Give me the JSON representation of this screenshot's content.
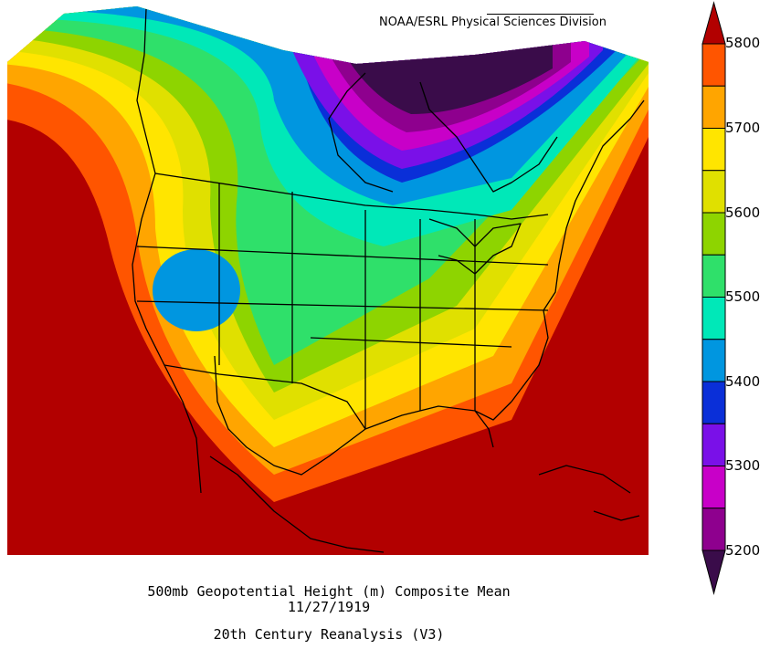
{
  "credit": "NOAA/ESRL Physical Sciences Division",
  "caption": {
    "line1": "500mb Geopotential Height (m) Composite Mean",
    "line2": "11/27/1919",
    "line3": "20th Century Reanalysis (V3)"
  },
  "legend": {
    "ticks": [
      "5800",
      "5700",
      "5600",
      "5500",
      "5400",
      "5300",
      "5200"
    ],
    "colors": [
      "#b20000",
      "#ff5500",
      "#ffa500",
      "#ffe500",
      "#e0e000",
      "#8ed400",
      "#2fe06a",
      "#00e8b8",
      "#0096e0",
      "#0a2fd8",
      "#7a10e8",
      "#c800c8",
      "#8e008e",
      "#3a0c4a"
    ]
  }
}
